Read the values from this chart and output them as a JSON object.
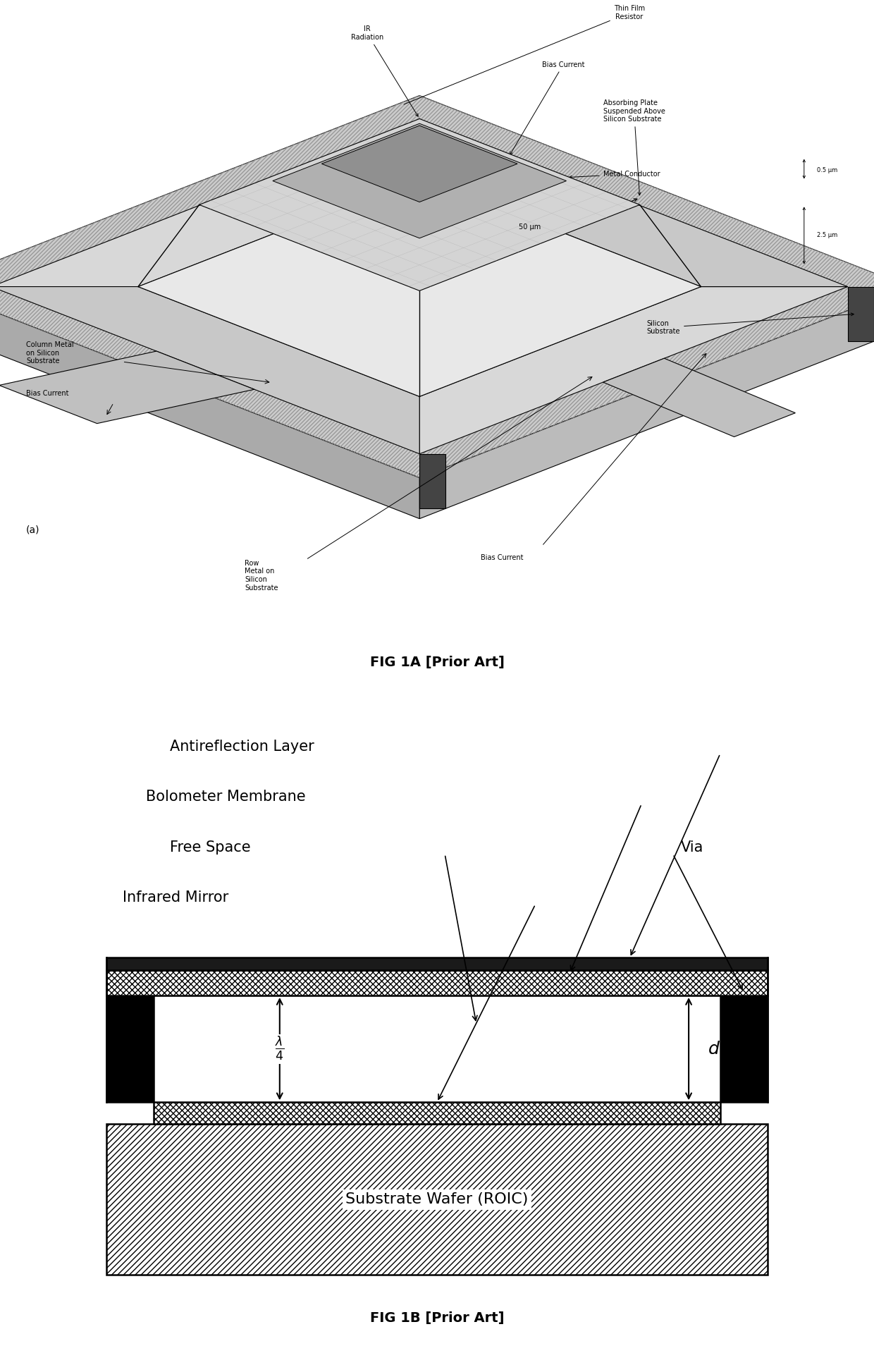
{
  "fig1a_caption": "FIG 1A [Prior Art]",
  "fig1b_caption": "FIG 1B [Prior Art]",
  "fig1a_label": "(a)",
  "fig1b_labels": {
    "antireflection": "Antireflection Layer",
    "bolometer": "Bolometer Membrane",
    "free_space": "Free Space",
    "infrared_mirror": "Infrared Mirror",
    "via": "Via",
    "d": "d",
    "substrate": "Substrate Wafer (ROIC)"
  },
  "fig1a_labels": {
    "thin_film": "Thin Film\nResistor",
    "ir_radiation": "IR\nRadiation",
    "bias_current_top": "Bias Current",
    "absorbing_plate": "Absorbing Plate\nSuspended Above\nSilicon Substrate",
    "metal_conductor": "Metal Conductor",
    "column_metal": "Column Metal\non Silicon\nSubstrate",
    "bias_current_left": "Bias Current",
    "row_metal": "Row\nMetal on\nSilicon\nSubstrate",
    "bias_current_bottom": "Bias Current",
    "silicon_substrate": "Silicon\nSubstrate",
    "dim_50um": "50 μm",
    "dim_05um": "0.5 μm",
    "dim_25um": "2.5 μm"
  },
  "background_color": "#ffffff",
  "line_color": "#000000",
  "text_color": "#000000"
}
